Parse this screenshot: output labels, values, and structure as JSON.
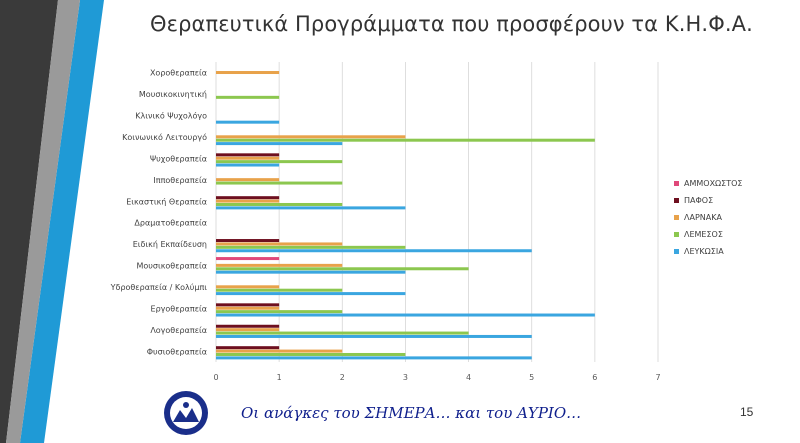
{
  "slide": {
    "title": "Θεραπευτικά Προγράμματα που προσφέρουν τα Κ.Η.Φ.Α.",
    "footer": "Οι ανάγκες του ΣΗΜΕΡΑ… και του ΑΥΡΙΟ…",
    "page_number": "15"
  },
  "colors": {
    "Αμμοχωστος": "#e0487a",
    "Παφος": "#6e0f1f",
    "Λαρνακα": "#e8a24a",
    "Λεμεσος": "#8cc74f",
    "Λευκωσια": "#3aa6e0",
    "grid": "#d6d6d6",
    "stripe_dark": "#3a3a3a",
    "stripe_blue": "#1f9ad6"
  },
  "chart_data": {
    "type": "bar",
    "orientation": "horizontal",
    "categories": [
      "Χοροθεραπεία",
      "Μουσικοκινητική",
      "Κλινικό Ψυχολόγο",
      "Κοινωνικό Λειτουργό",
      "Ψυχοθεραπεία",
      "Ιπποθεραπεία",
      "Εικαστική Θεραπεία",
      "Δραματοθεραπεία",
      "Ειδική Εκπαίδευση",
      "Μουσικοθεραπεία",
      "Υδροθεραπεία / Κολύμπι",
      "Εργοθεραπεία",
      "Λογοθεραπεία",
      "Φυσιοθεραπεία"
    ],
    "series": [
      {
        "name": "ΑΜΜΟΧΩΣΤΟΣ",
        "key": "Αμμοχωστος",
        "values": [
          0,
          0,
          0,
          0,
          0,
          0,
          0,
          0,
          0,
          1,
          0,
          0,
          0,
          0
        ]
      },
      {
        "name": "ΠΑΦΟΣ",
        "key": "Παφος",
        "values": [
          0,
          0,
          0,
          0,
          1,
          0,
          1,
          0,
          1,
          0,
          0,
          1,
          1,
          1
        ]
      },
      {
        "name": "ΛΑΡΝΑΚΑ",
        "key": "Λαρνακα",
        "values": [
          1,
          0,
          0,
          3,
          1,
          1,
          1,
          0,
          2,
          2,
          1,
          1,
          1,
          2
        ]
      },
      {
        "name": "ΛΕΜΕΣΟΣ",
        "key": "Λεμεσος",
        "values": [
          0,
          1,
          0,
          6,
          2,
          2,
          2,
          0,
          3,
          4,
          2,
          2,
          4,
          3
        ]
      },
      {
        "name": "ΛΕΥΚΩΣΙΑ",
        "key": "Λευκωσια",
        "values": [
          0,
          0,
          1,
          2,
          1,
          0,
          3,
          0,
          5,
          3,
          3,
          6,
          5,
          5
        ]
      }
    ],
    "x_ticks": [
      "0",
      "1",
      "2",
      "3",
      "4",
      "5",
      "6",
      "7"
    ],
    "xlim": [
      0,
      7
    ],
    "grid": true,
    "legend_position": "right"
  }
}
